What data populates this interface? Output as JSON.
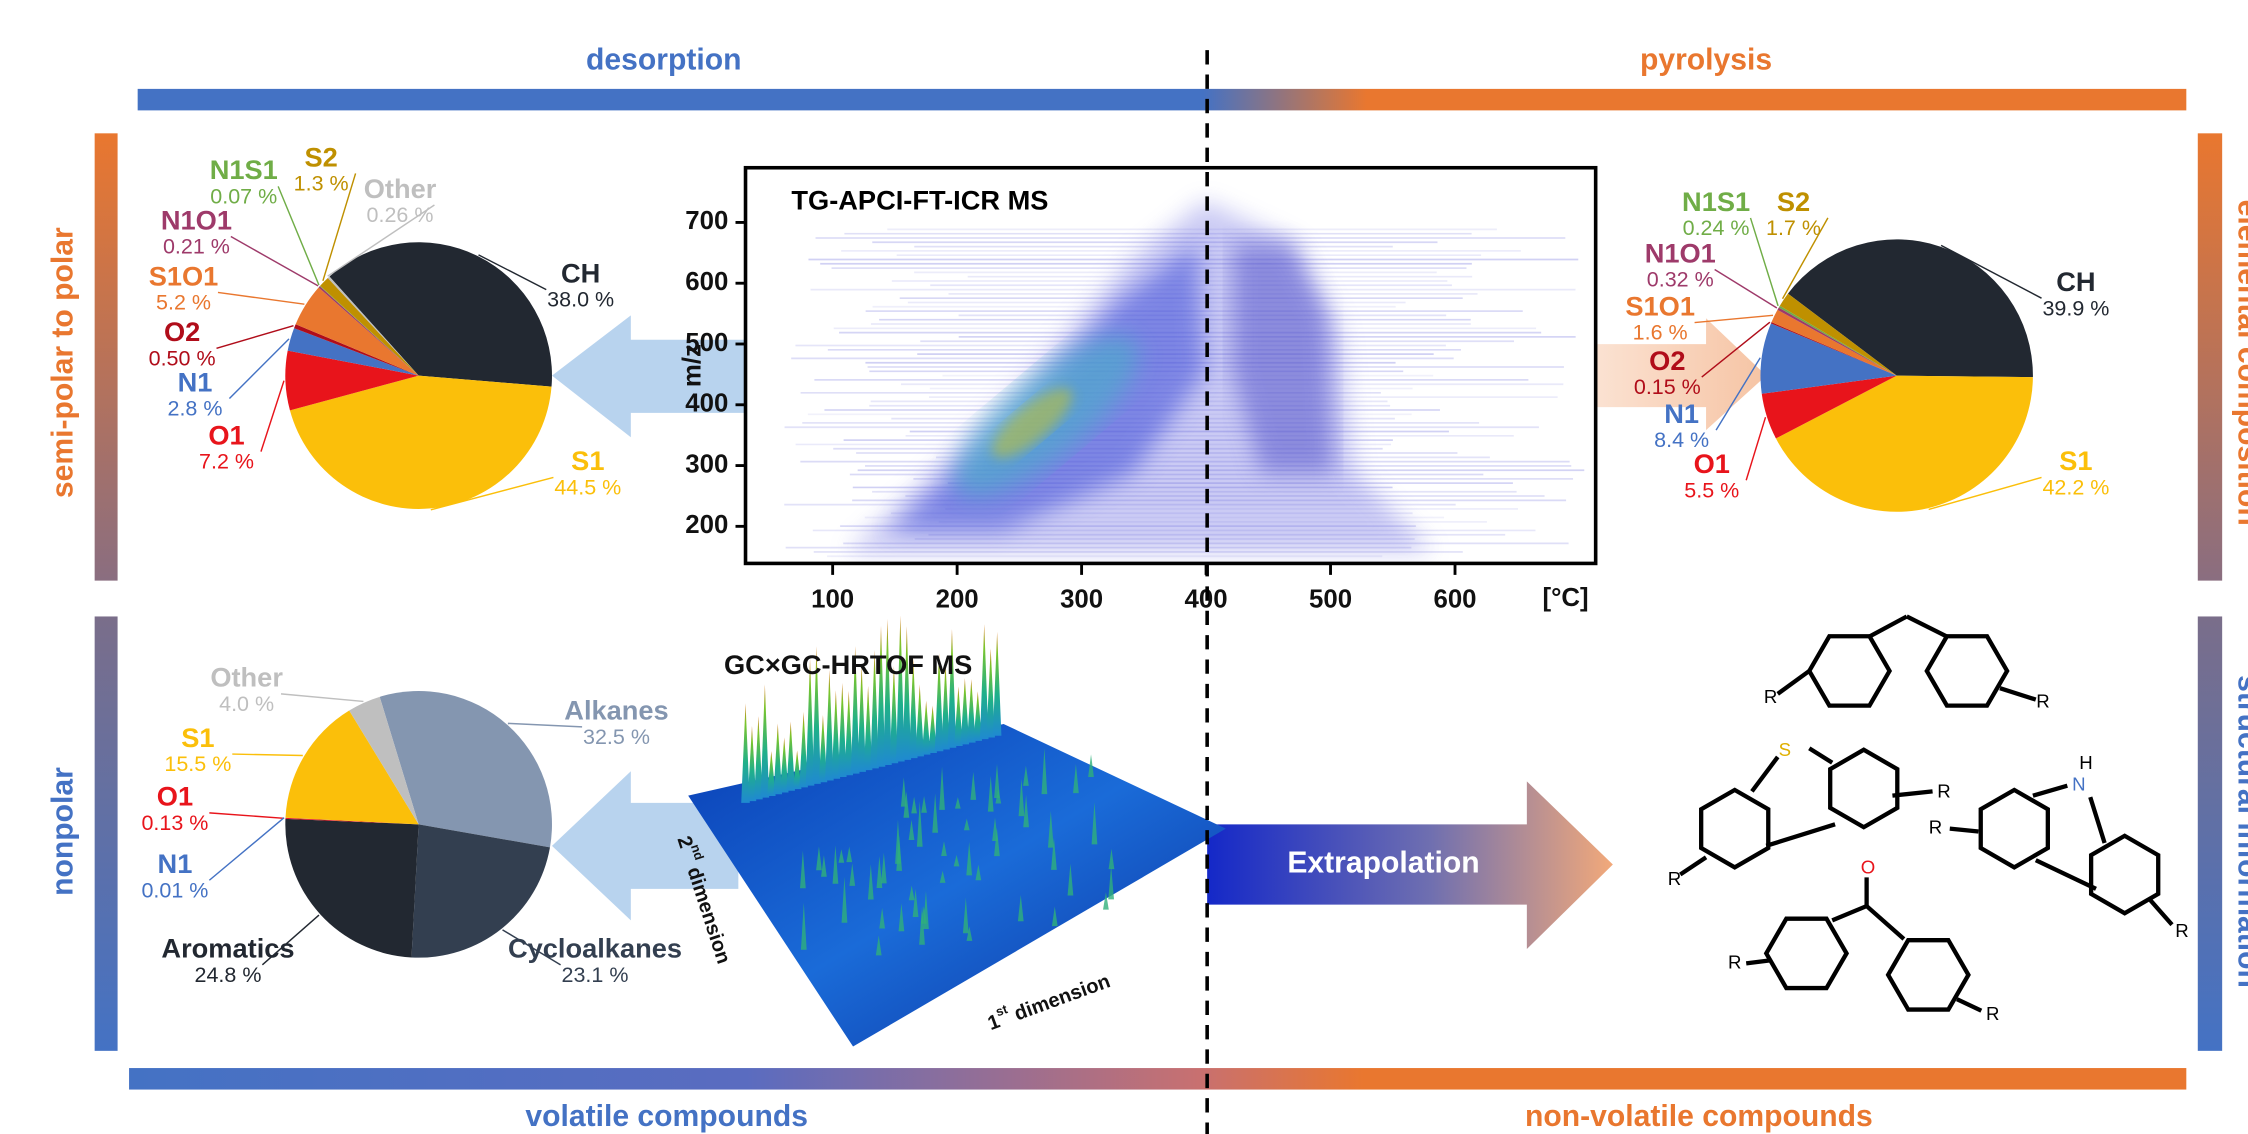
{
  "header": {
    "left": "desorption",
    "right": "pyrolysis"
  },
  "footer": {
    "left": "volatile compounds",
    "right": "non-volatile compounds"
  },
  "side_labels": {
    "top_left": "semi-polar to polar",
    "bottom_left": "nonpolar",
    "top_right": "elemental composition",
    "bottom_right": "structural information"
  },
  "gc": {
    "title": "GC×GC-HRTOF MS",
    "dim2": {
      "number": "2",
      "suffix": "nd",
      "text": " dimension"
    },
    "dim1": {
      "number": "1",
      "suffix": "st",
      "text": " dimension"
    }
  },
  "arrow_label": "Extrapolation",
  "atoms": {
    "r": "R",
    "s": "S",
    "n": "N",
    "h": "H",
    "o": "O"
  },
  "chart_data": [
    {
      "type": "pie",
      "categories": [
        "CH",
        "S1",
        "O1",
        "N1",
        "O2",
        "S1O1",
        "N1O1",
        "N1S1",
        "S2",
        "Other"
      ],
      "values": [
        38.0,
        44.5,
        7.2,
        2.8,
        0.5,
        5.2,
        0.21,
        0.07,
        1.3,
        0.26
      ],
      "value_labels": [
        "38.0 %",
        "44.5 %",
        "7.2 %",
        "2.8 %",
        "0.50 %",
        "5.2 %",
        "0.21 %",
        "0.07 %",
        "1.3 %",
        "0.26 %"
      ],
      "colors": [
        "#222831",
        "#fbbf0a",
        "#e8141b",
        "#4472c4",
        "#b00d1a",
        "#e9772f",
        "#9e3a6a",
        "#70ad47",
        "#bf9000",
        "#bfbfbf"
      ]
    },
    {
      "type": "heatmap",
      "title": "TG-APCI-FT-ICR MS",
      "y_label": "m/z",
      "x_label": "[°C]",
      "xlim": [
        30,
        713
      ],
      "ylim": [
        139,
        790
      ],
      "xticks": [
        100,
        200,
        300,
        400,
        500,
        600
      ],
      "yticks": [
        200,
        300,
        400,
        500,
        600,
        700
      ]
    },
    {
      "type": "pie",
      "categories": [
        "CH",
        "S1",
        "O1",
        "N1",
        "O2",
        "S1O1",
        "N1O1",
        "N1S1",
        "S2"
      ],
      "values": [
        39.9,
        42.2,
        5.5,
        8.4,
        0.15,
        1.6,
        0.32,
        0.24,
        1.7
      ],
      "value_labels": [
        "39.9 %",
        "42.2 %",
        "5.5 %",
        "8.4 %",
        "0.15 %",
        "1.6 %",
        "0.32 %",
        "0.24 %",
        "1.7 %"
      ],
      "colors": [
        "#222831",
        "#fbbf0a",
        "#e8141b",
        "#4472c4",
        "#b00d1a",
        "#e9772f",
        "#9e3a6a",
        "#70ad47",
        "#bf9000"
      ]
    },
    {
      "type": "pie",
      "categories": [
        "Alkanes",
        "Cycloalkanes",
        "Aromatics",
        "O1",
        "N1",
        "S1",
        "Other"
      ],
      "values": [
        32.5,
        23.1,
        24.8,
        0.13,
        0.01,
        15.5,
        4.0
      ],
      "value_labels": [
        "32.5 %",
        "23.1 %",
        "24.8 %",
        "0.13 %",
        "0.01 %",
        "15.5 %",
        "4.0 %"
      ],
      "colors": [
        "#8496b0",
        "#333f50",
        "#222831",
        "#e8141b",
        "#4472c4",
        "#fbbf0a",
        "#bfbfbf"
      ]
    }
  ]
}
